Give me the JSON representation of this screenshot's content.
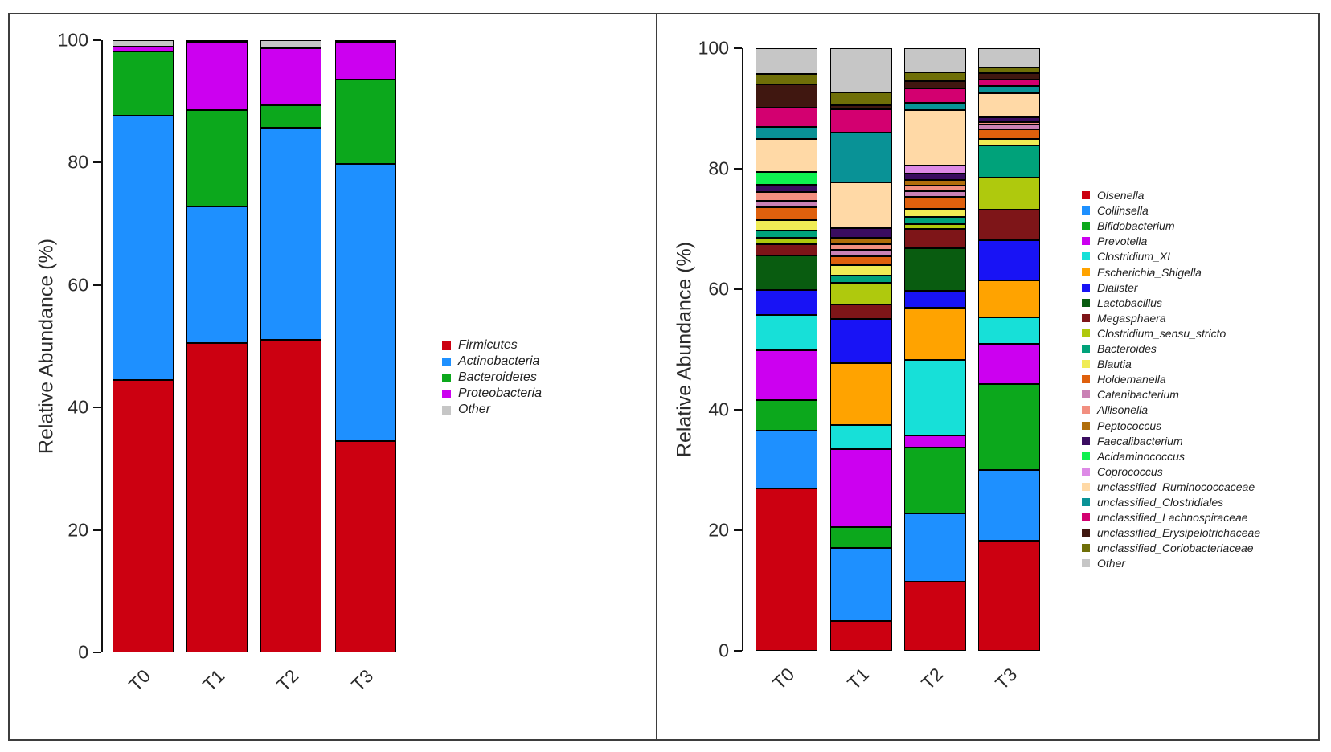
{
  "figure": {
    "border_color": "#3d3d3d",
    "background": "#ffffff"
  },
  "chart_data": [
    {
      "name": "phylum-relative-abundance",
      "type": "bar",
      "stacked": true,
      "title": "",
      "xlabel": "",
      "ylabel": "Relative Abundance (%)",
      "ylim": [
        0,
        100
      ],
      "yticks": [
        0,
        20,
        40,
        60,
        80,
        100
      ],
      "grid": false,
      "legend_position": "right",
      "categories": [
        "T0",
        "T1",
        "T2",
        "T3"
      ],
      "series": [
        {
          "name": "Firmicutes",
          "color": "#CC0011",
          "values": [
            44.5,
            50.5,
            51.0,
            34.5
          ]
        },
        {
          "name": "Actinobacteria",
          "color": "#1E90FF",
          "values": [
            43.2,
            22.3,
            34.7,
            45.3
          ]
        },
        {
          "name": "Bacteroidetes",
          "color": "#0CA81C",
          "values": [
            10.5,
            15.8,
            3.7,
            13.8
          ]
        },
        {
          "name": "Proteobacteria",
          "color": "#CC00F0",
          "values": [
            0.8,
            11.2,
            9.3,
            6.1
          ]
        },
        {
          "name": "Other",
          "color": "#C6C6C6",
          "values": [
            1.0,
            0.2,
            1.3,
            0.3
          ]
        }
      ]
    },
    {
      "name": "genus-relative-abundance",
      "type": "bar",
      "stacked": true,
      "title": "",
      "xlabel": "",
      "ylabel": "Relative Abundance (%)",
      "ylim": [
        0,
        100
      ],
      "yticks": [
        0,
        20,
        40,
        60,
        80,
        100
      ],
      "grid": false,
      "legend_position": "right",
      "categories": [
        "T0",
        "T1",
        "T2",
        "T3"
      ],
      "series": [
        {
          "name": "Olsenella",
          "color": "#CC0011",
          "values": [
            27.0,
            4.9,
            11.5,
            18.3
          ]
        },
        {
          "name": "Collinsella",
          "color": "#1E90FF",
          "values": [
            9.5,
            12.2,
            11.3,
            11.7
          ]
        },
        {
          "name": "Bifidobacterium",
          "color": "#0CA81C",
          "values": [
            5.1,
            3.4,
            11.0,
            14.3
          ]
        },
        {
          "name": "Prevotella",
          "color": "#CC00F0",
          "values": [
            8.3,
            13.0,
            2.0,
            6.6
          ]
        },
        {
          "name": "Clostridium_XI",
          "color": "#17E0D8",
          "values": [
            5.8,
            4.0,
            12.5,
            4.4
          ]
        },
        {
          "name": "Escherichia_Shigella",
          "color": "#FFA300",
          "values": [
            0,
            10.3,
            8.7,
            6.2
          ]
        },
        {
          "name": "Dialister",
          "color": "#1813F5",
          "values": [
            4.2,
            7.3,
            2.7,
            6.6
          ]
        },
        {
          "name": "Lactobacillus",
          "color": "#095C10",
          "values": [
            5.7,
            0,
            7.1,
            0
          ]
        },
        {
          "name": "Megasphaera",
          "color": "#7E1518",
          "values": [
            1.9,
            2.4,
            3.2,
            5.1
          ]
        },
        {
          "name": "Clostridium_sensu_stricto",
          "color": "#AFC90D",
          "values": [
            1.0,
            3.6,
            0.8,
            5.4
          ]
        },
        {
          "name": "Bacteroides",
          "color": "#00A27A",
          "values": [
            1.3,
            1.2,
            1.2,
            5.3
          ]
        },
        {
          "name": "Blautia",
          "color": "#F0EC55",
          "values": [
            1.7,
            1.7,
            1.4,
            1.0
          ]
        },
        {
          "name": "Holdemanella",
          "color": "#DF600D",
          "values": [
            2.1,
            1.5,
            2.0,
            1.6
          ]
        },
        {
          "name": "Catenibacterium",
          "color": "#CA81B5",
          "values": [
            1.1,
            1.1,
            0.9,
            0.8
          ]
        },
        {
          "name": "Allisonella",
          "color": "#F28F80",
          "values": [
            1.4,
            0.9,
            0.9,
            0.5
          ]
        },
        {
          "name": "Peptococcus",
          "color": "#B06E0B",
          "values": [
            0,
            1.1,
            1.0,
            0
          ]
        },
        {
          "name": "Faecalibacterium",
          "color": "#3A0C60",
          "values": [
            1.3,
            1.6,
            1.0,
            0.8
          ]
        },
        {
          "name": "Acidaminococcus",
          "color": "#0FF050",
          "values": [
            2.1,
            0,
            0,
            0
          ]
        },
        {
          "name": "Coprococcus",
          "color": "#DD8AE6",
          "values": [
            0,
            0,
            1.3,
            0
          ]
        },
        {
          "name": "unclassified_Ruminococcaceae",
          "color": "#FFD9A6",
          "values": [
            5.5,
            7.6,
            9.2,
            3.9
          ]
        },
        {
          "name": "unclassified_Clostridiales",
          "color": "#099296",
          "values": [
            1.9,
            8.2,
            1.2,
            1.2
          ]
        },
        {
          "name": "unclassified_Lachnospiraceae",
          "color": "#D30070",
          "values": [
            3.2,
            3.9,
            2.5,
            1.1
          ]
        },
        {
          "name": "unclassified_Erysipelotrichaceae",
          "color": "#401710",
          "values": [
            3.9,
            0.6,
            1.2,
            1.1
          ]
        },
        {
          "name": "unclassified_Coriobacteriaceae",
          "color": "#6F6F08",
          "values": [
            1.7,
            2.2,
            1.4,
            0.9
          ]
        },
        {
          "name": "Other",
          "color": "#C6C6C6",
          "values": [
            4.3,
            7.3,
            4.0,
            3.2
          ]
        }
      ]
    }
  ]
}
